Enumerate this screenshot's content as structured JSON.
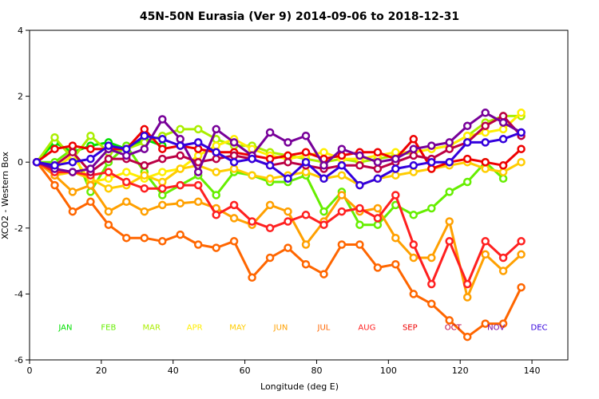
{
  "chart_data": {
    "type": "line",
    "title": "45N-50N Eurasia (Ver 9)   2014-09-06 to 2018-12-31",
    "xlabel": "Longitude (deg E)",
    "ylabel": "XCO2 - Western Box",
    "xlim": [
      0,
      150
    ],
    "ylim": [
      -6,
      4
    ],
    "xticks": [
      0,
      20,
      40,
      60,
      80,
      100,
      120,
      140
    ],
    "yticks": [
      -6,
      -4,
      -2,
      0,
      2,
      4
    ],
    "legend_y": -5,
    "series": [
      {
        "name": "JAN",
        "color": "#00e000",
        "legend_x": 10,
        "x": [
          2,
          7,
          12,
          17,
          22,
          27,
          32,
          37
        ],
        "y": [
          0.0,
          0.6,
          0.3,
          0.5,
          0.6,
          0.4,
          0.7,
          0.5
        ]
      },
      {
        "name": "FEB",
        "color": "#66ee00",
        "legend_x": 22,
        "x": [
          2,
          7,
          12,
          17,
          22,
          27,
          32,
          37,
          42,
          47,
          52,
          57,
          62,
          67,
          72,
          77,
          82,
          87,
          92,
          97,
          102,
          107,
          112,
          117,
          122,
          127,
          132
        ],
        "y": [
          0.0,
          0.0,
          0.4,
          -0.9,
          0.0,
          0.5,
          -0.3,
          -1.0,
          -0.7,
          -0.4,
          -1.0,
          -0.3,
          -0.4,
          -0.6,
          -0.6,
          -0.4,
          -1.5,
          -0.9,
          -1.9,
          -1.9,
          -1.3,
          -1.6,
          -1.4,
          -0.9,
          -0.6,
          0.0,
          -0.5
        ]
      },
      {
        "name": "MAR",
        "color": "#aaee00",
        "legend_x": 34,
        "x": [
          2,
          7,
          12,
          17,
          22,
          27,
          32,
          37,
          42,
          47,
          52,
          57,
          62,
          67,
          72,
          77,
          82,
          87,
          92,
          97,
          102,
          107,
          112,
          117,
          122,
          127,
          132,
          137
        ],
        "y": [
          0.0,
          0.75,
          0.1,
          0.8,
          0.3,
          0.4,
          0.6,
          0.8,
          1.0,
          1.0,
          0.7,
          0.5,
          0.5,
          0.3,
          0.2,
          0.1,
          0.0,
          0.1,
          0.0,
          0.1,
          0.2,
          0.3,
          0.4,
          0.5,
          0.8,
          1.2,
          1.4,
          1.4
        ]
      },
      {
        "name": "APR",
        "color": "#ffee00",
        "legend_x": 46,
        "x": [
          2,
          7,
          12,
          17,
          22,
          27,
          32,
          37,
          42,
          47,
          52,
          57,
          62,
          67,
          72,
          77,
          82,
          87,
          92,
          97,
          102,
          107,
          112,
          117,
          122,
          127,
          132,
          137
        ],
        "y": [
          0.0,
          -0.2,
          0.2,
          -0.6,
          -0.5,
          -0.3,
          -0.5,
          -0.3,
          -0.2,
          0.2,
          0.5,
          0.7,
          0.4,
          0.2,
          0.1,
          0.2,
          0.3,
          0.1,
          0.1,
          0.2,
          0.3,
          0.3,
          0.4,
          0.5,
          0.8,
          0.9,
          1.0,
          1.5
        ]
      },
      {
        "name": "MAY",
        "color": "#ffcc00",
        "legend_x": 58,
        "x": [
          2,
          7,
          12,
          17,
          22,
          27,
          32,
          37,
          42,
          47,
          52,
          57,
          62,
          67,
          72,
          77,
          82,
          87,
          92,
          97,
          102,
          107,
          112,
          117,
          122,
          127,
          132,
          137
        ],
        "y": [
          0.0,
          -0.4,
          -0.3,
          -0.5,
          -0.8,
          -0.7,
          -0.4,
          -0.6,
          -0.2,
          -0.1,
          -0.3,
          -0.2,
          -0.4,
          -0.5,
          -0.4,
          -0.3,
          -0.5,
          -0.4,
          -0.7,
          -0.5,
          -0.4,
          -0.3,
          -0.2,
          -0.1,
          0.0,
          -0.2,
          -0.3,
          0.0
        ]
      },
      {
        "name": "JUN",
        "color": "#ffa000",
        "legend_x": 70,
        "x": [
          2,
          7,
          12,
          17,
          22,
          27,
          32,
          37,
          42,
          47,
          52,
          57,
          62,
          67,
          72,
          77,
          82,
          87,
          92,
          97,
          102,
          107,
          112,
          117,
          122,
          127,
          132,
          137
        ],
        "y": [
          0.0,
          -0.4,
          -0.9,
          -0.7,
          -1.5,
          -1.2,
          -1.5,
          -1.3,
          -1.25,
          -1.2,
          -1.4,
          -1.7,
          -1.9,
          -1.3,
          -1.5,
          -2.5,
          -1.8,
          -1.0,
          -1.5,
          -1.4,
          -2.3,
          -2.9,
          -2.9,
          -1.8,
          -4.1,
          -2.8,
          -3.3,
          -2.8
        ]
      },
      {
        "name": "JUL",
        "color": "#ff6600",
        "legend_x": 82,
        "x": [
          2,
          7,
          12,
          17,
          22,
          27,
          32,
          37,
          42,
          47,
          52,
          57,
          62,
          67,
          72,
          77,
          82,
          87,
          92,
          97,
          102,
          107,
          112,
          117,
          122,
          127,
          132,
          137
        ],
        "y": [
          0.0,
          -0.7,
          -1.5,
          -1.2,
          -1.9,
          -2.3,
          -2.3,
          -2.4,
          -2.2,
          -2.5,
          -2.6,
          -2.4,
          -3.5,
          -2.9,
          -2.6,
          -3.1,
          -3.4,
          -2.5,
          -2.5,
          -3.2,
          -3.1,
          -4.0,
          -4.3,
          -4.8,
          -5.3,
          -4.9,
          -4.9,
          -3.8
        ]
      },
      {
        "name": "AUG",
        "color": "#ff2020",
        "legend_x": 94,
        "x": [
          2,
          7,
          12,
          17,
          22,
          27,
          32,
          37,
          42,
          47,
          52,
          57,
          62,
          67,
          72,
          77,
          82,
          87,
          92,
          97,
          102,
          107,
          112,
          117,
          122,
          127,
          132,
          137
        ],
        "y": [
          0.0,
          -0.3,
          -0.3,
          -0.4,
          -0.3,
          -0.6,
          -0.8,
          -0.8,
          -0.7,
          -0.7,
          -1.6,
          -1.3,
          -1.8,
          -2.0,
          -1.8,
          -1.6,
          -1.9,
          -1.5,
          -1.4,
          -1.7,
          -1.0,
          -2.5,
          -3.7,
          -2.4,
          -3.7,
          -2.4,
          -2.9,
          -2.4
        ]
      },
      {
        "name": "SEP",
        "color": "#ee0000",
        "legend_x": 106,
        "x": [
          2,
          7,
          12,
          17,
          22,
          27,
          32,
          37,
          42,
          47,
          52,
          57,
          62,
          67,
          72,
          77,
          82,
          87,
          92,
          97,
          102,
          107,
          112,
          117,
          122,
          127,
          132,
          137
        ],
        "y": [
          0.0,
          0.4,
          0.5,
          0.4,
          0.4,
          0.4,
          1.0,
          0.4,
          0.5,
          0.4,
          0.3,
          0.3,
          0.2,
          0.1,
          0.2,
          0.3,
          0.1,
          0.2,
          0.3,
          0.3,
          0.1,
          0.7,
          -0.2,
          0.0,
          0.1,
          0.0,
          -0.1,
          0.4
        ]
      },
      {
        "name": "OCT",
        "color": "#bb0044",
        "legend_x": 118,
        "x": [
          2,
          7,
          12,
          17,
          22,
          27,
          32,
          37,
          42,
          47,
          52,
          57,
          62,
          67,
          72,
          77,
          82,
          87,
          92,
          97,
          102,
          107,
          112,
          117,
          122,
          127,
          132,
          137
        ],
        "y": [
          0.0,
          -0.1,
          0.3,
          -0.3,
          0.1,
          0.1,
          -0.1,
          0.1,
          0.2,
          0.0,
          0.1,
          0.2,
          0.1,
          -0.1,
          0.0,
          -0.1,
          -0.2,
          -0.1,
          -0.1,
          -0.2,
          0.0,
          0.2,
          0.1,
          0.4,
          0.6,
          1.1,
          1.4,
          0.8
        ]
      },
      {
        "name": "NOV",
        "color": "#770099",
        "legend_x": 130,
        "x": [
          2,
          7,
          12,
          17,
          22,
          27,
          32,
          37,
          42,
          47,
          52,
          57,
          62,
          67,
          72,
          77,
          82,
          87,
          92,
          97,
          102,
          107,
          112,
          117,
          122,
          127,
          132,
          137
        ],
        "y": [
          0.0,
          -0.2,
          -0.3,
          -0.2,
          0.4,
          0.2,
          0.4,
          1.3,
          0.7,
          -0.3,
          1.0,
          0.6,
          0.2,
          0.9,
          0.6,
          0.8,
          -0.1,
          0.4,
          0.2,
          0.0,
          0.1,
          0.4,
          0.5,
          0.6,
          1.1,
          1.5,
          1.2,
          0.9
        ]
      },
      {
        "name": "DEC",
        "color": "#3300dd",
        "legend_x": 142,
        "x": [
          2,
          7,
          12,
          17,
          22,
          27,
          32,
          37,
          42,
          47,
          52,
          57,
          62,
          67,
          72,
          77,
          82,
          87,
          92,
          97,
          102,
          107,
          112,
          117,
          122,
          127,
          132,
          137
        ],
        "y": [
          0.0,
          -0.1,
          0.0,
          0.1,
          0.5,
          0.4,
          0.8,
          0.7,
          0.5,
          0.6,
          0.3,
          0.0,
          0.1,
          -0.1,
          -0.5,
          0.0,
          -0.5,
          -0.1,
          -0.7,
          -0.5,
          -0.2,
          -0.1,
          0.0,
          0.0,
          0.6,
          0.6,
          0.7,
          0.9
        ]
      }
    ]
  }
}
